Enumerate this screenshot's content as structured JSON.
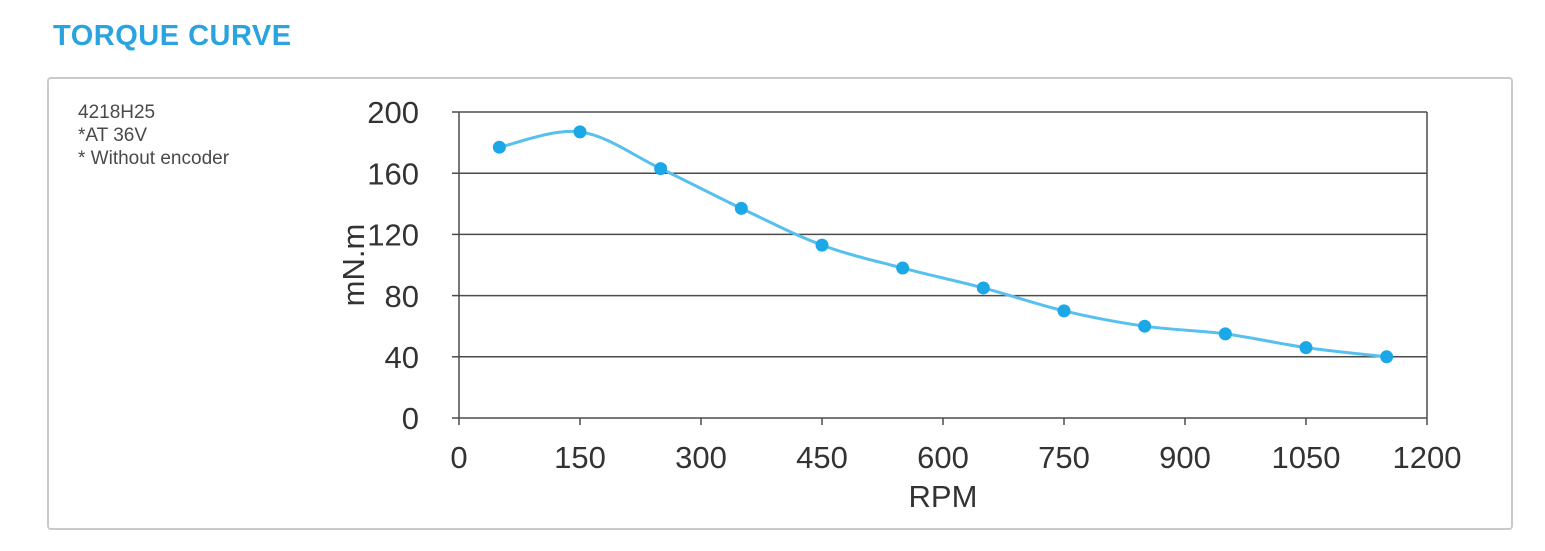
{
  "header": {
    "title": "TORQUE CURVE",
    "title_color": "#29A4DE"
  },
  "panel": {
    "annotation_lines": [
      "4218H25",
      "*AT 36V",
      "* Without encoder"
    ]
  },
  "chart_data": {
    "type": "line",
    "title": "TORQUE CURVE",
    "xlabel": "RPM",
    "ylabel": "mN.m",
    "xlim": [
      0,
      1200
    ],
    "ylim": [
      0,
      200
    ],
    "xticks": [
      0,
      150,
      300,
      450,
      600,
      750,
      900,
      1050,
      1200
    ],
    "yticks": [
      0,
      40,
      80,
      120,
      160,
      200
    ],
    "grid": "horizontal",
    "legend": "none",
    "grid_color": "#4b4b4b",
    "tick_label_color": "#333333",
    "series": [
      {
        "name": "Torque at 36V without encoder",
        "x": [
          50,
          150,
          250,
          350,
          450,
          550,
          650,
          750,
          850,
          950,
          1050,
          1150
        ],
        "values": [
          177,
          187,
          163,
          137,
          113,
          98,
          85,
          70,
          60,
          55,
          46,
          40
        ],
        "line_color": "#58C0EE",
        "marker_color": "#1CA8E7",
        "marker": "circle"
      }
    ]
  }
}
